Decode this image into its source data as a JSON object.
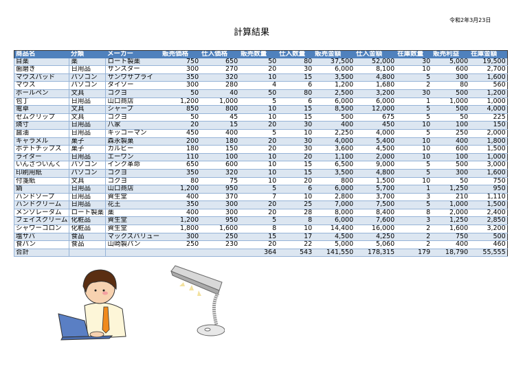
{
  "title": "計算結果",
  "date": "令和2年3月23日",
  "colors": {
    "header_bg": "#4f81bd",
    "band": "#dce6f1"
  },
  "table": {
    "headers": [
      "商品名",
      "分類",
      "メーカー",
      "販売価格",
      "仕入価格",
      "販売数量",
      "仕入数量",
      "販売金額",
      "仕入金額",
      "在庫数量",
      "販売利益",
      "在庫金額"
    ],
    "rows": [
      [
        "目薬",
        "薬",
        "ロート製薬",
        "750",
        "650",
        "50",
        "80",
        "37,500",
        "52,000",
        "30",
        "5,000",
        "19,500"
      ],
      [
        "歯磨き",
        "日用品",
        "サンスター",
        "300",
        "270",
        "20",
        "30",
        "6,000",
        "8,100",
        "10",
        "600",
        "2,700"
      ],
      [
        "マウスパッド",
        "パソコン",
        "サンワサプライ",
        "350",
        "320",
        "10",
        "15",
        "3,500",
        "4,800",
        "5",
        "300",
        "1,600"
      ],
      [
        "マウス",
        "パソコン",
        "ダイソー",
        "300",
        "280",
        "4",
        "6",
        "1,200",
        "1,680",
        "2",
        "80",
        "560"
      ],
      [
        "ボールペン",
        "文具",
        "コクヨ",
        "50",
        "40",
        "50",
        "80",
        "2,500",
        "3,200",
        "30",
        "500",
        "1,200"
      ],
      [
        "包丁",
        "日用品",
        "山口商店",
        "1,200",
        "1,000",
        "5",
        "6",
        "6,000",
        "6,000",
        "1",
        "1,000",
        "1,000"
      ],
      [
        "電卓",
        "文具",
        "シャープ",
        "850",
        "800",
        "10",
        "15",
        "8,500",
        "12,000",
        "5",
        "500",
        "4,000"
      ],
      [
        "ゼムクリップ",
        "文具",
        "コクヨ",
        "50",
        "45",
        "10",
        "15",
        "500",
        "675",
        "5",
        "50",
        "225"
      ],
      [
        "燐寸",
        "日用品",
        "八家",
        "20",
        "15",
        "20",
        "30",
        "400",
        "450",
        "10",
        "100",
        "150"
      ],
      [
        "醤油",
        "日用品",
        "キッコーマン",
        "450",
        "400",
        "5",
        "10",
        "2,250",
        "4,000",
        "5",
        "250",
        "2,000"
      ],
      [
        "キャラメル",
        "菓子",
        "森永製菓",
        "200",
        "180",
        "20",
        "30",
        "4,000",
        "5,400",
        "10",
        "400",
        "1,800"
      ],
      [
        "ポテトチップス",
        "菓子",
        "カルビー",
        "180",
        "150",
        "20",
        "30",
        "3,600",
        "4,500",
        "10",
        "600",
        "1,500"
      ],
      [
        "ライター",
        "日用品",
        "エーワン",
        "110",
        "100",
        "10",
        "20",
        "1,100",
        "2,000",
        "10",
        "100",
        "1,000"
      ],
      [
        "いんさついんく",
        "パソコン",
        "インク革命",
        "650",
        "600",
        "10",
        "15",
        "6,500",
        "9,000",
        "5",
        "500",
        "3,000"
      ],
      [
        "印刷用紙",
        "パソコン",
        "コクヨ",
        "350",
        "320",
        "10",
        "15",
        "3,500",
        "4,800",
        "5",
        "300",
        "1,600"
      ],
      [
        "付箋紙",
        "文具",
        "コクヨ",
        "80",
        "75",
        "10",
        "20",
        "800",
        "1,500",
        "10",
        "50",
        "750"
      ],
      [
        "鍋",
        "日用品",
        "山口商店",
        "1,200",
        "950",
        "5",
        "6",
        "6,000",
        "5,700",
        "1",
        "1,250",
        "950"
      ],
      [
        "ハンドソープ",
        "日用品",
        "資生堂",
        "400",
        "370",
        "7",
        "10",
        "2,800",
        "3,700",
        "3",
        "210",
        "1,110"
      ],
      [
        "ハンドクリーム",
        "日用品",
        "花王",
        "350",
        "300",
        "20",
        "25",
        "7,000",
        "7,500",
        "5",
        "1,000",
        "1,500"
      ],
      [
        "メンソレータム",
        "ロート製薬",
        "薬",
        "400",
        "300",
        "20",
        "28",
        "8,000",
        "8,400",
        "8",
        "2,000",
        "2,400"
      ],
      [
        "フェイスクリーム",
        "化粧品",
        "資生堂",
        "1,200",
        "950",
        "5",
        "8",
        "6,000",
        "7,600",
        "3",
        "1,250",
        "2,850"
      ],
      [
        "シャワーコロン",
        "化粧品",
        "資生堂",
        "1,800",
        "1,600",
        "8",
        "10",
        "14,400",
        "16,000",
        "2",
        "1,600",
        "3,200"
      ],
      [
        "塩サバ",
        "食品",
        "マックスバリュー",
        "300",
        "250",
        "15",
        "17",
        "4,500",
        "4,250",
        "2",
        "750",
        "500"
      ],
      [
        "食パン",
        "食品",
        "山崎製パン",
        "250",
        "230",
        "20",
        "22",
        "5,000",
        "5,060",
        "2",
        "400",
        "460"
      ],
      [
        "合計",
        "",
        "",
        "",
        "",
        "364",
        "543",
        "141,550",
        "178,315",
        "179",
        "18,790",
        "55,555"
      ]
    ]
  }
}
